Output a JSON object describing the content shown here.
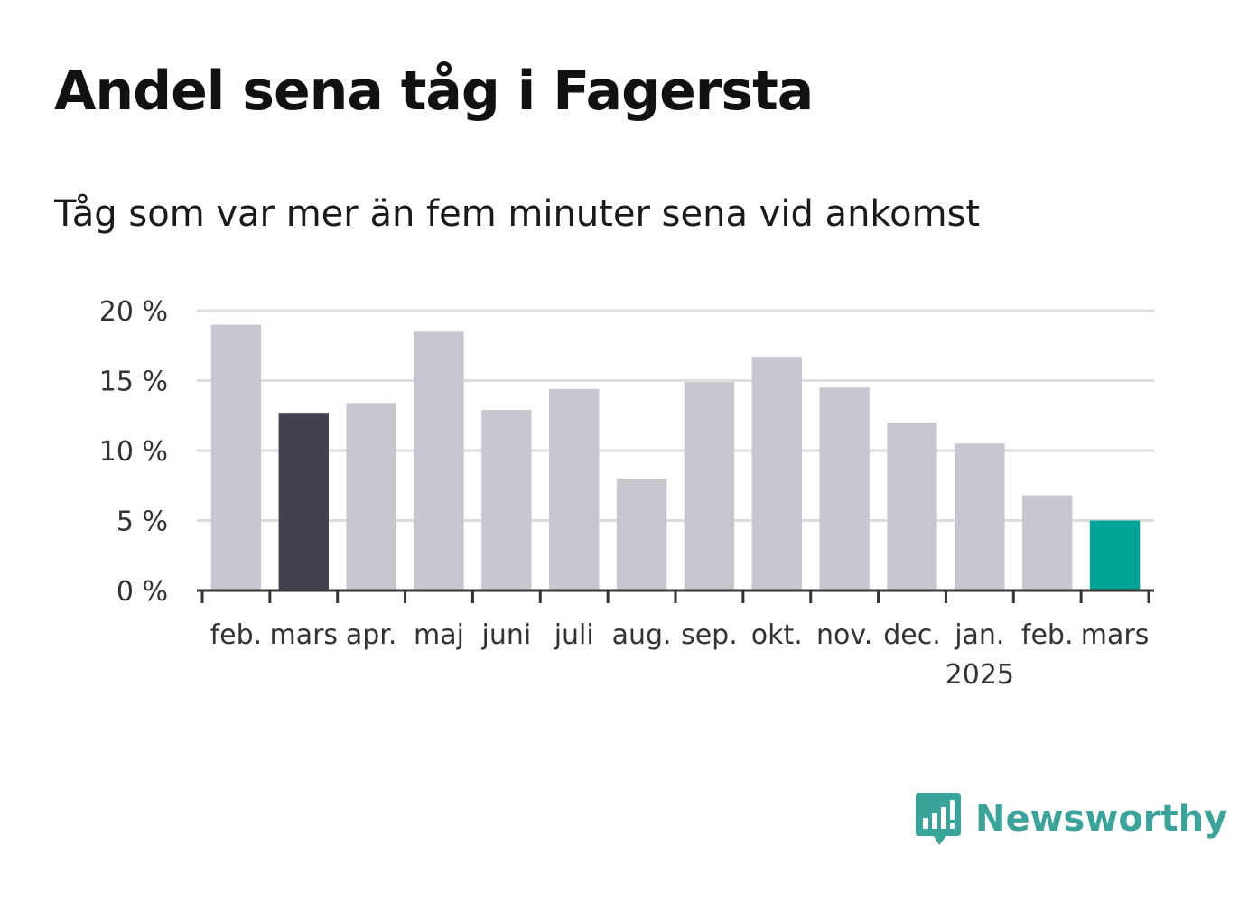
{
  "header": {
    "title": "Andel sena tåg i Fagersta",
    "subtitle": "Tåg som var mer än fem minuter sena vid ankomst"
  },
  "brand": {
    "name": "Newsworthy",
    "logo_icon": "newsworthy-logo-icon"
  },
  "colors": {
    "bar": "#c8c7d0",
    "highlight_dark": "#43414d",
    "highlight_current": "#00a396",
    "grid": "#dddddd",
    "axis": "#333333",
    "brand": "#3aa39a"
  },
  "chart_data": {
    "type": "bar",
    "categories": [
      "feb.",
      "mars",
      "apr.",
      "maj",
      "juni",
      "juli",
      "aug.",
      "sep.",
      "okt.",
      "nov.",
      "dec.",
      "jan.",
      "feb.",
      "mars"
    ],
    "year_labels": [
      "",
      "",
      "",
      "",
      "",
      "",
      "",
      "",
      "",
      "",
      "",
      "2025",
      "",
      ""
    ],
    "values": [
      19.0,
      12.7,
      13.4,
      18.5,
      12.9,
      14.4,
      8.0,
      14.9,
      16.7,
      14.5,
      12.0,
      10.5,
      6.8,
      5.0
    ],
    "highlight": [
      "",
      "dark",
      "",
      "",
      "",
      "",
      "",
      "",
      "",
      "",
      "",
      "",
      "",
      "current"
    ],
    "y_ticks": [
      0,
      5,
      10,
      15,
      20
    ],
    "y_tick_labels": [
      "0 %",
      "5 %",
      "10 %",
      "15 %",
      "20 %"
    ],
    "ylim": [
      0,
      20
    ],
    "xlabel": "",
    "ylabel": "",
    "grid": true,
    "legend": "none"
  }
}
